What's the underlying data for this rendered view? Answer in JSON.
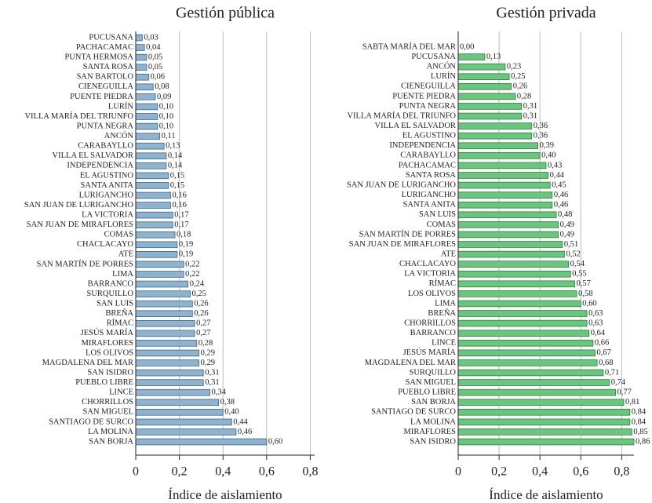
{
  "chart_data": [
    {
      "type": "bar",
      "orientation": "horizontal",
      "title": "Gestión pública",
      "x_label": "Índice de aislamiento",
      "color": "#8fb2cf",
      "edge_color": "#3f6485",
      "grid": true,
      "xlim": [
        0,
        0.82
      ],
      "xticks": [
        0,
        {
          "value": 0.2,
          "label": "0,2"
        },
        {
          "value": 0.4,
          "label": "0,4"
        },
        {
          "value": 0.6,
          "label": "0,6"
        },
        {
          "value": 0.8,
          "label": "0,8"
        }
      ],
      "categories": [
        "PUCUSANA",
        "PACHACAMAC",
        "PUNTA HERMOSA",
        "SANTA ROSA",
        "SAN BARTOLO",
        "CIENEGUILLA",
        "PUENTE PIEDRA",
        "LURÍN",
        "VILLA MARÍA DEL TRIUNFO",
        "PUNTA NEGRA",
        "ANCÓN",
        "CARABAYLLO",
        "VILLA EL SALVADOR",
        "INDEPENDENCIA",
        "EL AGUSTINO",
        "SANTA ANITA",
        "LURIGANCHO",
        "SAN JUAN DE LURIGANCHO",
        "LA VICTORIA",
        "SAN JUAN DE MIRAFLORES",
        "COMAS",
        "CHACLACAYO",
        "ATE",
        "SAN MARTÍN DE PORRES",
        "LIMA",
        "BARRANCO",
        "SURQUILLO",
        "SAN LUIS",
        "BREÑA",
        "RÍMAC",
        "JESÚS MARÍA",
        "MIRAFLORES",
        "LOS OLIVOS",
        "MAGDALENA DEL MAR",
        "SAN ISIDRO",
        "PUEBLO LIBRE",
        "LINCE",
        "CHORRILLOS",
        "SAN MIGUEL",
        "SANTIAGO DE SURCO",
        "LA MOLINA",
        "SAN BORJA"
      ],
      "values": [
        0.03,
        0.04,
        0.05,
        0.05,
        0.06,
        0.08,
        0.09,
        0.1,
        0.1,
        0.1,
        0.11,
        0.13,
        0.14,
        0.14,
        0.15,
        0.15,
        0.16,
        0.16,
        0.17,
        0.17,
        0.18,
        0.19,
        0.19,
        0.22,
        0.22,
        0.24,
        0.25,
        0.26,
        0.26,
        0.27,
        0.27,
        0.28,
        0.29,
        0.29,
        0.31,
        0.31,
        0.34,
        0.38,
        0.4,
        0.44,
        0.46,
        0.6
      ],
      "value_labels": [
        "0,03",
        "0,04",
        "0,05",
        "0,05",
        "0,06",
        "0,08",
        "0,09",
        "0,10",
        "0,10",
        "0,10",
        "0,11",
        "0,13",
        "0,14",
        "0,14",
        "0,15",
        "0,15",
        "0,16",
        "0,16",
        "0,17",
        "0,17",
        "0,18",
        "0,19",
        "0,19",
        "0,22",
        "0,22",
        "0,24",
        "0,25",
        "0,26",
        "0,26",
        "0,27",
        "0,27",
        "0,28",
        "0,29",
        "0,29",
        "0,31",
        "0,31",
        "0,34",
        "0,38",
        "0,40",
        "0,44",
        "0,46",
        "0,60"
      ]
    },
    {
      "type": "bar",
      "orientation": "horizontal",
      "title": "Gestión privada",
      "x_label": "Índice de aislamiento",
      "color": "#6cc57f",
      "edge_color": "#2e7d3e",
      "grid": true,
      "xlim": [
        0,
        0.86
      ],
      "xticks": [
        0,
        {
          "value": 0.2,
          "label": "0,2"
        },
        {
          "value": 0.4,
          "label": "0,4"
        },
        {
          "value": 0.6,
          "label": "0,6"
        },
        {
          "value": 0.8,
          "label": "0,8"
        }
      ],
      "categories": [
        "SABTA MARÍA DEL MAR",
        "PUCUSANA",
        "ANCÓN",
        "LURÍN",
        "CIENEGUILLA",
        "PUENTE PIEDRA",
        "PUNTA NEGRA",
        "VILLA MARÍA DEL TRIUNFO",
        "VILLA EL SALVADOR",
        "EL AGUSTINO",
        "INDEPENDENCIA",
        "CARABAYLLO",
        "PACHACAMAC",
        "SANTA ROSA",
        "SAN JUAN DE LURIGANCHO",
        "LURIGANCHO",
        "SANTA ANITA",
        "SAN LUIS",
        "COMAS",
        "SAN MARTÍN DE PORRES",
        "SAN JUAN DE MIRAFLORES",
        "ATE",
        "CHACLACAYO",
        "LA VICTORIA",
        "RÍMAC",
        "LOS OLIVOS",
        "LIMA",
        "BREÑA",
        "CHORRILLOS",
        "BARRANCO",
        "LINCE",
        "JESÚS MARÍA",
        "MAGDALENA DEL MAR",
        "SURQUILLO",
        "SAN MIGUEL",
        "PUEBLO LIBRE",
        "SAN BORJA",
        "SANTIAGO DE SURCO",
        "LA MOLINA",
        "MIRAFLORES",
        "SAN ISIDRO"
      ],
      "values": [
        0.0,
        0.13,
        0.23,
        0.25,
        0.26,
        0.28,
        0.31,
        0.31,
        0.36,
        0.36,
        0.39,
        0.4,
        0.43,
        0.44,
        0.45,
        0.46,
        0.46,
        0.48,
        0.49,
        0.49,
        0.51,
        0.52,
        0.54,
        0.55,
        0.57,
        0.58,
        0.6,
        0.63,
        0.63,
        0.64,
        0.66,
        0.67,
        0.68,
        0.71,
        0.74,
        0.77,
        0.81,
        0.84,
        0.84,
        0.85,
        0.86
      ],
      "value_labels": [
        "0,00",
        "0,13",
        "0,23",
        "0,25",
        "0,26",
        "0,28",
        "0,31",
        "0,31",
        "0,36",
        "0,36",
        "0,39",
        "0,40",
        "0,43",
        "0,44",
        "0,45",
        "0,46",
        "0,46",
        "0,48",
        "0,49",
        "0,49",
        "0,51",
        "0,52",
        "0,54",
        "0,55",
        "0,57",
        "0,58",
        "0,60",
        "0,63",
        "0,63",
        "0,64",
        "0,66",
        "0,67",
        "0,68",
        "0,71",
        "0,74",
        "0,77",
        "0,81",
        "0,84",
        "0,84",
        "0,85",
        "0,86"
      ]
    }
  ]
}
